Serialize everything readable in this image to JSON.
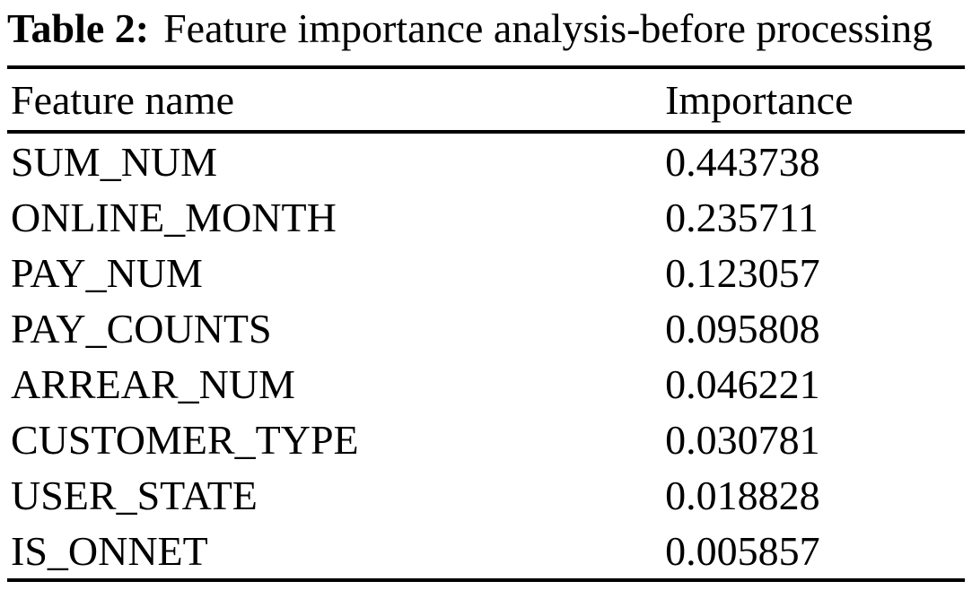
{
  "caption": {
    "label": "Table 2:",
    "text": "Feature importance analysis-before processing"
  },
  "table": {
    "headers": {
      "feature": "Feature name",
      "importance": "Importance"
    },
    "rows": [
      {
        "feature": "SUM_NUM",
        "importance": "0.443738"
      },
      {
        "feature": "ONLINE_MONTH",
        "importance": "0.235711"
      },
      {
        "feature": "PAY_NUM",
        "importance": "0.123057"
      },
      {
        "feature": "PAY_COUNTS",
        "importance": "0.095808"
      },
      {
        "feature": "ARREAR_NUM",
        "importance": "0.046221"
      },
      {
        "feature": "CUSTOMER_TYPE",
        "importance": "0.030781"
      },
      {
        "feature": "USER_STATE",
        "importance": "0.018828"
      },
      {
        "feature": "IS_ONNET",
        "importance": "0.005857"
      }
    ]
  },
  "colors": {
    "text": "#000000",
    "background": "#ffffff",
    "rule": "#000000"
  }
}
